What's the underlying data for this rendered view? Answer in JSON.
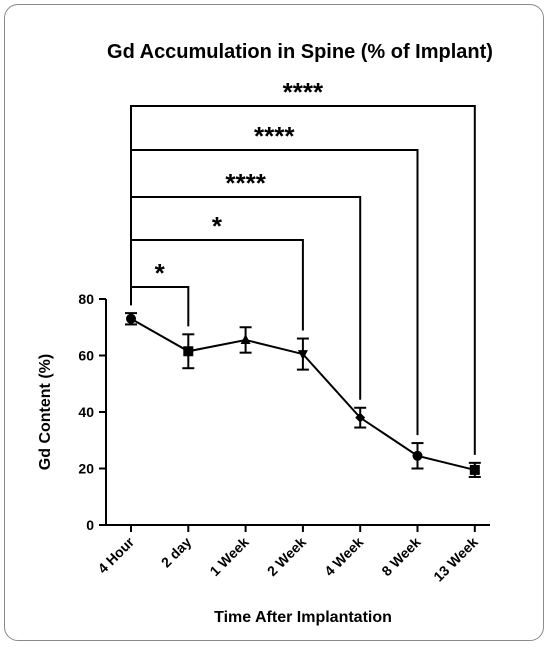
{
  "chart_data": {
    "type": "line",
    "title": "Gd Accumulation in Spine (% of Implant)",
    "xlabel": "Time After Implantation",
    "ylabel": "Gd Content (%)",
    "categories": [
      "4 Hour",
      "2 day",
      "1 Week",
      "2 Week",
      "4 Week",
      "8 Week",
      "13 Week"
    ],
    "values": [
      73,
      61.5,
      65.5,
      60.5,
      38,
      24.5,
      19.5
    ],
    "error": [
      2,
      6,
      4.5,
      5.5,
      3.5,
      4.5,
      2.5
    ],
    "markers": [
      "circle",
      "square",
      "triangle-up",
      "triangle-down",
      "diamond",
      "circle",
      "square"
    ],
    "ylim": [
      0,
      80
    ],
    "yticks": [
      "0",
      "20",
      "40",
      "60",
      "80"
    ],
    "grid": false,
    "significance": [
      {
        "from": "4 Hour",
        "to": "2 day",
        "label": "*"
      },
      {
        "from": "4 Hour",
        "to": "2 Week",
        "label": "*"
      },
      {
        "from": "4 Hour",
        "to": "4 Week",
        "label": "****"
      },
      {
        "from": "4 Hour",
        "to": "8 Week",
        "label": "****"
      },
      {
        "from": "4 Hour",
        "to": "13 Week",
        "label": "****"
      }
    ],
    "colors": {
      "line": "#000000"
    }
  }
}
